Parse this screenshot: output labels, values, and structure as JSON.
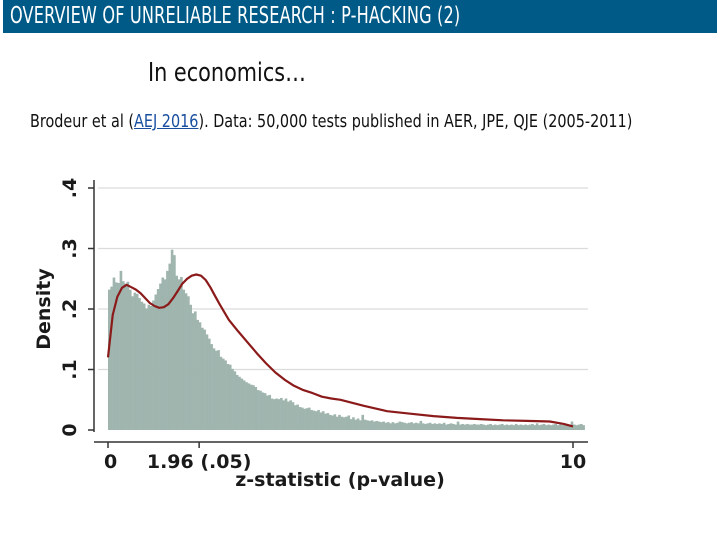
{
  "slide": {
    "title": "OVERVIEW OF UNRELIABLE RESEARCH : P-HACKING (2)",
    "subtitle": "In economics…",
    "source_prefix": "Brodeur et al (",
    "source_link": "AEJ 2016",
    "source_suffix": "). Data: 50,000 tests published in AER, JPE, QJE (2005-2011)"
  },
  "colors": {
    "title_bar": "#005a87",
    "bars": "#9fb5ae",
    "density_line": "#8b1a1a",
    "link": "#1a4fa0"
  },
  "chart_data": {
    "type": "bar",
    "xlabel": "z-statistic (p-value)",
    "ylabel": "Density",
    "xlim": [
      0,
      10
    ],
    "ylim": [
      0,
      0.4
    ],
    "x_ticks": [
      {
        "value": 0,
        "label": "0"
      },
      {
        "value": 1.96,
        "label": "1.96 (.05)"
      },
      {
        "value": 10,
        "label": "10"
      }
    ],
    "y_ticks": [
      {
        "value": 0,
        "label": "0"
      },
      {
        "value": 0.1,
        "label": ".1"
      },
      {
        "value": 0.2,
        "label": ".2"
      },
      {
        "value": 0.3,
        "label": ".3"
      },
      {
        "value": 0.4,
        "label": ".4"
      }
    ],
    "grid": true,
    "bin_width": 0.1,
    "histogram": [
      0.232,
      0.237,
      0.252,
      0.244,
      0.243,
      0.263,
      0.246,
      0.242,
      0.245,
      0.232,
      0.221,
      0.227,
      0.225,
      0.218,
      0.212,
      0.209,
      0.201,
      0.207,
      0.205,
      0.214,
      0.224,
      0.233,
      0.242,
      0.252,
      0.249,
      0.263,
      0.275,
      0.298,
      0.289,
      0.255,
      0.249,
      0.253,
      0.232,
      0.226,
      0.221,
      0.207,
      0.193,
      0.196,
      0.182,
      0.178,
      0.169,
      0.166,
      0.158,
      0.151,
      0.142,
      0.135,
      0.131,
      0.132,
      0.121,
      0.118,
      0.115,
      0.109,
      0.108,
      0.101,
      0.097,
      0.091,
      0.088,
      0.085,
      0.082,
      0.079,
      0.077,
      0.075,
      0.074,
      0.071,
      0.066,
      0.065,
      0.062,
      0.061,
      0.057,
      0.058,
      0.052,
      0.051,
      0.052,
      0.051,
      0.053,
      0.049,
      0.052,
      0.047,
      0.049,
      0.046,
      0.041,
      0.042,
      0.038,
      0.037,
      0.035,
      0.036,
      0.037,
      0.033,
      0.032,
      0.031,
      0.033,
      0.029,
      0.031,
      0.027,
      0.028,
      0.025,
      0.024,
      0.026,
      0.022,
      0.025,
      0.022,
      0.021,
      0.022,
      0.024,
      0.018,
      0.021,
      0.017,
      0.019,
      0.016,
      0.025,
      0.017,
      0.016,
      0.015,
      0.016,
      0.014,
      0.015,
      0.014,
      0.013,
      0.014,
      0.012,
      0.013,
      0.011,
      0.013,
      0.011,
      0.012,
      0.014,
      0.013,
      0.012,
      0.011,
      0.012,
      0.013,
      0.011,
      0.012,
      0.011,
      0.015,
      0.011,
      0.01,
      0.011,
      0.012,
      0.01,
      0.011,
      0.01,
      0.011,
      0.01,
      0.012,
      0.009,
      0.01,
      0.011,
      0.01,
      0.009,
      0.014,
      0.009,
      0.01,
      0.009,
      0.01,
      0.009,
      0.009,
      0.01,
      0.009,
      0.009,
      0.01,
      0.009,
      0.008,
      0.009,
      0.01,
      0.008,
      0.009,
      0.008,
      0.009,
      0.01,
      0.008,
      0.009,
      0.008,
      0.009,
      0.008,
      0.01,
      0.008,
      0.009,
      0.008,
      0.009,
      0.008,
      0.009,
      0.01,
      0.008,
      0.011,
      0.008,
      0.009,
      0.01,
      0.008,
      0.009,
      0.008,
      0.009,
      0.01,
      0.008,
      0.009,
      0.008,
      0.009,
      0.01,
      0.009,
      0.014,
      0.009,
      0.008,
      0.009,
      0.01,
      0.008
    ],
    "density_curve": {
      "x": [
        0.0,
        0.1,
        0.2,
        0.3,
        0.4,
        0.5,
        0.6,
        0.7,
        0.8,
        0.9,
        1.0,
        1.1,
        1.2,
        1.3,
        1.4,
        1.5,
        1.6,
        1.7,
        1.8,
        1.9,
        2.0,
        2.1,
        2.2,
        2.3,
        2.4,
        2.6,
        2.8,
        3.0,
        3.2,
        3.4,
        3.6,
        3.8,
        4.0,
        4.2,
        4.4,
        4.6,
        4.8,
        5.0,
        5.5,
        6.0,
        6.5,
        7.0,
        7.5,
        8.0,
        8.5,
        9.0,
        9.5,
        9.8,
        10.0
      ],
      "y": [
        0.12,
        0.19,
        0.22,
        0.235,
        0.24,
        0.236,
        0.232,
        0.226,
        0.218,
        0.21,
        0.205,
        0.202,
        0.203,
        0.208,
        0.218,
        0.23,
        0.242,
        0.25,
        0.255,
        0.257,
        0.255,
        0.248,
        0.236,
        0.222,
        0.208,
        0.182,
        0.163,
        0.145,
        0.127,
        0.11,
        0.095,
        0.083,
        0.073,
        0.066,
        0.061,
        0.055,
        0.052,
        0.05,
        0.04,
        0.031,
        0.027,
        0.023,
        0.02,
        0.018,
        0.016,
        0.015,
        0.014,
        0.01,
        0.006
      ]
    }
  }
}
